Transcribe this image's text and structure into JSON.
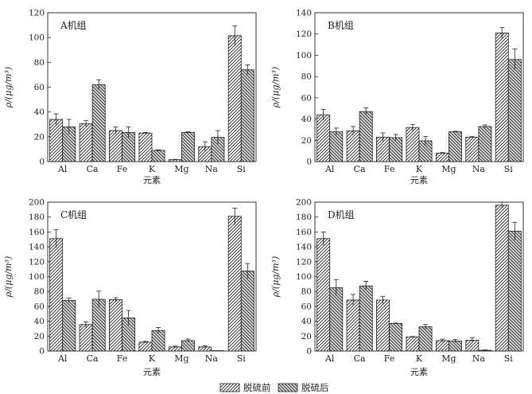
{
  "legend": {
    "items": [
      {
        "label": "脱硫前",
        "pattern": "hatch-before"
      },
      {
        "label": "脱硫后",
        "pattern": "hatch-after"
      }
    ]
  },
  "chart_data": [
    {
      "type": "bar",
      "panel_label": "A机组",
      "categories": [
        "Al",
        "Ca",
        "Fe",
        "K",
        "Mg",
        "Na",
        "Si"
      ],
      "xlabel": "元素",
      "ylabel": "ρ/(μg/m³)",
      "ylim": [
        0,
        120
      ],
      "yticks": [
        0,
        20,
        40,
        60,
        80,
        100,
        120
      ],
      "series": [
        {
          "name": "脱硫前",
          "values": [
            34,
            30.5,
            25,
            23,
            1.5,
            12,
            101.5
          ],
          "errors": [
            4.5,
            2.5,
            3,
            0.5,
            0.3,
            4,
            8
          ]
        },
        {
          "name": "脱硫后",
          "values": [
            28,
            62,
            23.5,
            9,
            23.5,
            19.5,
            74
          ],
          "errors": [
            6,
            4,
            4.5,
            0.5,
            0.5,
            5.5,
            4
          ]
        }
      ]
    },
    {
      "type": "bar",
      "panel_label": "B机组",
      "categories": [
        "Al",
        "Ca",
        "Fe",
        "K",
        "Mg",
        "Na",
        "Si"
      ],
      "xlabel": "元素",
      "ylabel": "ρ/(μg/m³)",
      "ylim": [
        0,
        140
      ],
      "yticks": [
        0,
        20,
        40,
        60,
        80,
        100,
        120,
        140
      ],
      "series": [
        {
          "name": "脱硫前",
          "values": [
            44,
            29,
            23,
            32,
            8,
            23,
            121
          ],
          "errors": [
            5,
            4,
            4,
            3,
            0.5,
            0.5,
            5
          ]
        },
        {
          "name": "脱硫后",
          "values": [
            28,
            47,
            22.5,
            19.5,
            28,
            33,
            96
          ],
          "errors": [
            3.5,
            3.5,
            3,
            4,
            0.5,
            1.5,
            10
          ]
        }
      ]
    },
    {
      "type": "bar",
      "panel_label": "C机组",
      "categories": [
        "Al",
        "Ca",
        "Fe",
        "K",
        "Mg",
        "Na",
        "Si"
      ],
      "xlabel": "元素",
      "ylabel": "ρ/(μg/m³)",
      "ylim": [
        0,
        200
      ],
      "yticks": [
        0,
        20,
        40,
        60,
        80,
        100,
        120,
        140,
        160,
        180,
        200
      ],
      "series": [
        {
          "name": "脱硫前",
          "values": [
            151,
            35.5,
            69,
            12,
            5.5,
            5.5,
            181
          ],
          "errors": [
            12,
            3.5,
            2.5,
            1,
            1,
            1.5,
            11
          ]
        },
        {
          "name": "脱硫后",
          "values": [
            68,
            69.5,
            44.5,
            27.5,
            14,
            0,
            107.5
          ],
          "errors": [
            3,
            11,
            10,
            4,
            2,
            0,
            10
          ]
        }
      ]
    },
    {
      "type": "bar",
      "panel_label": "D机组",
      "categories": [
        "Al",
        "Ca",
        "Fe",
        "K",
        "Mg",
        "Na",
        "Si"
      ],
      "xlabel": "元素",
      "ylabel": "ρ/(μg/m³)",
      "ylim": [
        0,
        200
      ],
      "yticks": [
        0,
        20,
        40,
        60,
        80,
        100,
        120,
        140,
        160,
        180,
        200
      ],
      "series": [
        {
          "name": "脱硫前",
          "values": [
            151,
            68.5,
            68.5,
            19,
            14,
            14.5,
            196
          ],
          "errors": [
            9,
            7.5,
            5,
            0.5,
            2,
            3.5,
            4
          ]
        },
        {
          "name": "脱硫后",
          "values": [
            85,
            87.5,
            37,
            32.5,
            13.5,
            1,
            161
          ],
          "errors": [
            11,
            6,
            0.5,
            3,
            2,
            0.5,
            12
          ]
        }
      ]
    }
  ]
}
